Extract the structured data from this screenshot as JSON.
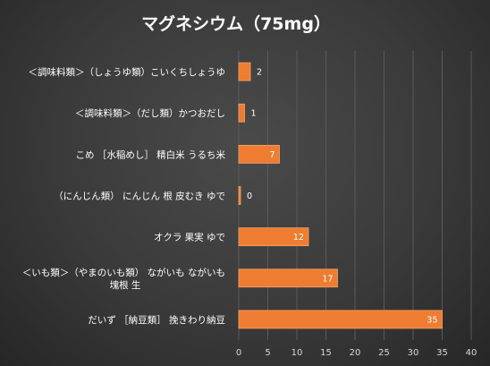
{
  "chart_data": {
    "type": "bar",
    "orientation": "horizontal",
    "title": "マグネシウム（75mg）",
    "categories": [
      [
        "＜調味料類＞（しょうゆ類）こいくちしょうゆ"
      ],
      [
        "＜調味料類＞（だし類）かつおだし"
      ],
      [
        "こめ ［水稲めし］ 精白米 うるち米"
      ],
      [
        "（にんじん類） にんじん 根 皮むき ゆで"
      ],
      [
        "オクラ 果実 ゆで"
      ],
      [
        "＜いも類＞（やまのいも類） ながいも ながいも",
        "塊根 生"
      ],
      [
        "だいず ［納豆類］ 挽きわり納豆"
      ]
    ],
    "values": [
      2,
      1,
      7,
      0,
      12,
      17,
      35
    ],
    "data_labels": [
      "2",
      "1",
      "7",
      "0",
      "12",
      "17",
      "35"
    ],
    "x_ticks": [
      "0",
      "5",
      "10",
      "15",
      "20",
      "25",
      "30",
      "35",
      "40"
    ],
    "xlim": [
      0,
      40
    ],
    "grid": "vertical",
    "legend": "none",
    "colors": {
      "bar": "#ee7c31",
      "bar_edge": "#f4a56b",
      "label_inside": "#ffffff",
      "label_small": "#ffffff"
    }
  }
}
